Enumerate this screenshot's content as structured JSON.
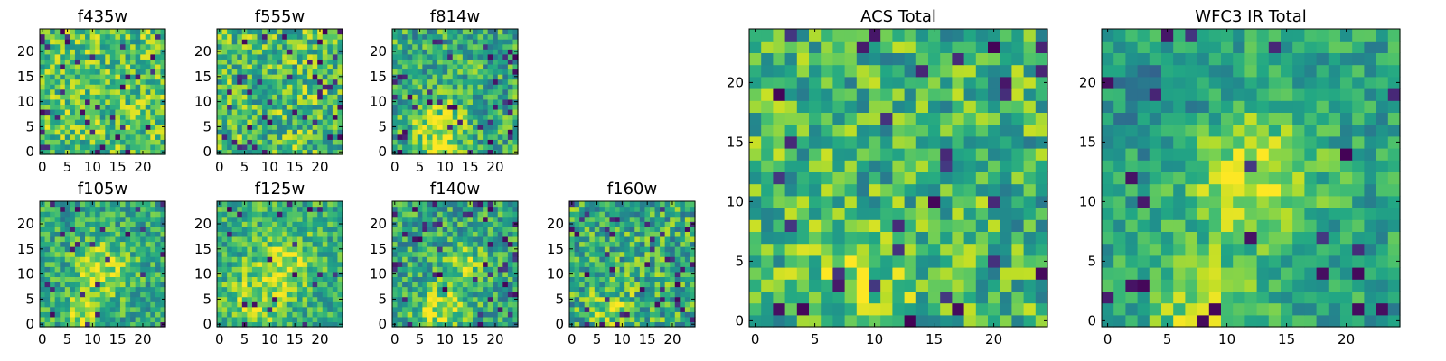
{
  "chart_data": [
    {
      "type": "heatmap",
      "title": "f435w",
      "xlim": [
        -0.5,
        24.5
      ],
      "ylim": [
        -0.5,
        24.5
      ],
      "xticks": [
        "0",
        "5",
        "10",
        "15",
        "20"
      ],
      "yticks": [
        "0",
        "5",
        "10",
        "15",
        "20"
      ],
      "colormap": "viridis",
      "value_range": [
        0,
        1
      ],
      "field": {
        "base": 0.72,
        "spread": 0.26,
        "blobs": [],
        "dark_fraction": 0.05,
        "seed": 11
      }
    },
    {
      "type": "heatmap",
      "title": "f555w",
      "xlim": [
        -0.5,
        24.5
      ],
      "ylim": [
        -0.5,
        24.5
      ],
      "xticks": [
        "0",
        "5",
        "10",
        "15",
        "20"
      ],
      "yticks": [
        "0",
        "5",
        "10",
        "15",
        "20"
      ],
      "colormap": "viridis",
      "value_range": [
        0,
        1
      ],
      "field": {
        "base": 0.7,
        "spread": 0.28,
        "blobs": [],
        "dark_fraction": 0.06,
        "seed": 23
      }
    },
    {
      "type": "heatmap",
      "title": "f814w",
      "xlim": [
        -0.5,
        24.5
      ],
      "ylim": [
        -0.5,
        24.5
      ],
      "xticks": [
        "0",
        "5",
        "10",
        "15",
        "20"
      ],
      "yticks": [
        "0",
        "5",
        "10",
        "15",
        "20"
      ],
      "colormap": "viridis",
      "value_range": [
        0,
        1
      ],
      "field": {
        "base": 0.62,
        "spread": 0.26,
        "blobs": [
          {
            "x": 9,
            "y": 6,
            "amp": 0.25,
            "r": 3.5
          },
          {
            "x": 8,
            "y": 1,
            "amp": 0.2,
            "r": 2.5
          }
        ],
        "dark_fraction": 0.06,
        "seed": 37
      }
    },
    {
      "type": "heatmap",
      "title": "f105w",
      "xlim": [
        -0.5,
        24.5
      ],
      "ylim": [
        -0.5,
        24.5
      ],
      "xticks": [
        "0",
        "5",
        "10",
        "15",
        "20"
      ],
      "yticks": [
        "0",
        "5",
        "10",
        "15",
        "20"
      ],
      "colormap": "viridis",
      "value_range": [
        0,
        1
      ],
      "field": {
        "base": 0.6,
        "spread": 0.22,
        "blobs": [
          {
            "x": 12,
            "y": 11,
            "amp": 0.3,
            "r": 4
          },
          {
            "x": 8,
            "y": 2,
            "amp": 0.25,
            "r": 3
          }
        ],
        "dark_fraction": 0.05,
        "seed": 41
      }
    },
    {
      "type": "heatmap",
      "title": "f125w",
      "xlim": [
        -0.5,
        24.5
      ],
      "ylim": [
        -0.5,
        24.5
      ],
      "xticks": [
        "0",
        "5",
        "10",
        "15",
        "20"
      ],
      "yticks": [
        "0",
        "5",
        "10",
        "15",
        "20"
      ],
      "colormap": "viridis",
      "value_range": [
        0,
        1
      ],
      "field": {
        "base": 0.64,
        "spread": 0.22,
        "blobs": [
          {
            "x": 13,
            "y": 12,
            "amp": 0.25,
            "r": 4
          },
          {
            "x": 7,
            "y": 5,
            "amp": 0.2,
            "r": 4
          }
        ],
        "dark_fraction": 0.04,
        "seed": 53
      }
    },
    {
      "type": "heatmap",
      "title": "f140w",
      "xlim": [
        -0.5,
        24.5
      ],
      "ylim": [
        -0.5,
        24.5
      ],
      "xticks": [
        "0",
        "5",
        "10",
        "15",
        "20"
      ],
      "yticks": [
        "0",
        "5",
        "10",
        "15",
        "20"
      ],
      "colormap": "viridis",
      "value_range": [
        0,
        1
      ],
      "field": {
        "base": 0.6,
        "spread": 0.24,
        "blobs": [
          {
            "x": 9,
            "y": 3,
            "amp": 0.3,
            "r": 3.5
          },
          {
            "x": 14,
            "y": 12,
            "amp": 0.2,
            "r": 3
          }
        ],
        "dark_fraction": 0.06,
        "seed": 67
      }
    },
    {
      "type": "heatmap",
      "title": "f160w",
      "xlim": [
        -0.5,
        24.5
      ],
      "ylim": [
        -0.5,
        24.5
      ],
      "xticks": [
        "0",
        "5",
        "10",
        "15",
        "20"
      ],
      "yticks": [
        "0",
        "5",
        "10",
        "15",
        "20"
      ],
      "colormap": "viridis",
      "value_range": [
        0,
        1
      ],
      "field": {
        "base": 0.62,
        "spread": 0.28,
        "blobs": [
          {
            "x": 8,
            "y": 4,
            "amp": 0.2,
            "r": 3
          }
        ],
        "dark_fraction": 0.07,
        "seed": 79
      }
    },
    {
      "type": "heatmap",
      "title": "ACS Total",
      "xlim": [
        -0.5,
        24.5
      ],
      "ylim": [
        -0.5,
        24.5
      ],
      "xticks": [
        "0",
        "5",
        "10",
        "15",
        "20"
      ],
      "yticks": [
        "0",
        "5",
        "10",
        "15",
        "20"
      ],
      "colormap": "viridis",
      "value_range": [
        0,
        1
      ],
      "field": {
        "base": 0.66,
        "spread": 0.26,
        "blobs": [
          {
            "x": 9,
            "y": 4,
            "amp": 0.2,
            "r": 3
          }
        ],
        "dark_fraction": 0.05,
        "seed": 97
      }
    },
    {
      "type": "heatmap",
      "title": "WFC3 IR Total",
      "xlim": [
        -0.5,
        24.5
      ],
      "ylim": [
        -0.5,
        24.5
      ],
      "xticks": [
        "0",
        "5",
        "10",
        "15",
        "20"
      ],
      "yticks": [
        "0",
        "5",
        "10",
        "15",
        "20"
      ],
      "colormap": "viridis",
      "value_range": [
        0,
        1
      ],
      "field": {
        "base": 0.58,
        "spread": 0.18,
        "blobs": [
          {
            "x": 12,
            "y": 12,
            "amp": 0.35,
            "r": 4
          },
          {
            "x": 8,
            "y": 1,
            "amp": 0.3,
            "r": 3
          },
          {
            "x": 4,
            "y": 18,
            "amp": -0.15,
            "r": 3
          }
        ],
        "dark_fraction": 0.04,
        "seed": 113
      }
    }
  ]
}
